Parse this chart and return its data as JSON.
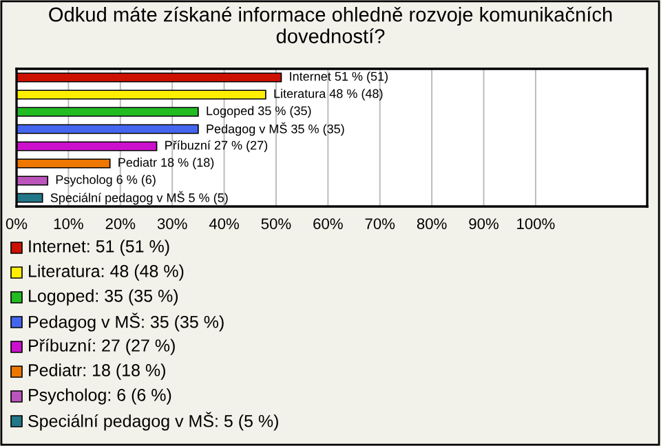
{
  "chart_data": {
    "type": "bar",
    "orientation": "horizontal",
    "title": "Odkud máte získané informace ohledně rozvoje komunikačních dovedností?",
    "categories": [
      null,
      null,
      null,
      null,
      null,
      null,
      null,
      null
    ],
    "values": [
      51,
      48,
      35,
      35,
      27,
      18,
      6,
      5
    ],
    "colors": [
      "#cc1100",
      "#ffee00",
      "#22bb22",
      "#4466ee",
      "#cc11cc",
      "#ee7700",
      "#bb55bb",
      "#227788"
    ],
    "value_labels": [
      "Internet 51 % (51)",
      "Literatura 48 % (48)",
      "Logoped 35 % (35)",
      "Pedagog v MŠ 35 % (35)",
      "Příbuzní 27 % (27)",
      "Pediatr 18 % (18)",
      "Psycholog 6 % (6)",
      "Speciální pedagog v MŠ 5 % (5)"
    ],
    "annotations": [
      "Internet: 51 (51 %)",
      "Literatura: 48 (48 %)",
      "Logoped: 35 (35 %)",
      "Pedagog v MŠ: 35 (35 %)",
      "Příbuzní: 27 (27 %)",
      "Pediatr: 18 (18 %)",
      "Psycholog: 6 (6 %)",
      "Speciální pedagog v MŠ: 5 (5 %)"
    ],
    "xlim": [
      0,
      121.5
    ],
    "xticks": [
      {
        "value": 0,
        "label": "0%"
      },
      {
        "value": 10,
        "label": "10%"
      },
      {
        "value": 20,
        "label": "20%"
      },
      {
        "value": 30,
        "label": "30%"
      },
      {
        "value": 40,
        "label": "40%"
      },
      {
        "value": 50,
        "label": "50%"
      },
      {
        "value": 60,
        "label": "60%"
      },
      {
        "value": 70,
        "label": "70%"
      },
      {
        "value": 80,
        "label": "80%"
      },
      {
        "value": 90,
        "label": "90%"
      },
      {
        "value": 100,
        "label": "100%"
      }
    ],
    "grid": "x",
    "tick_labels": "x"
  }
}
